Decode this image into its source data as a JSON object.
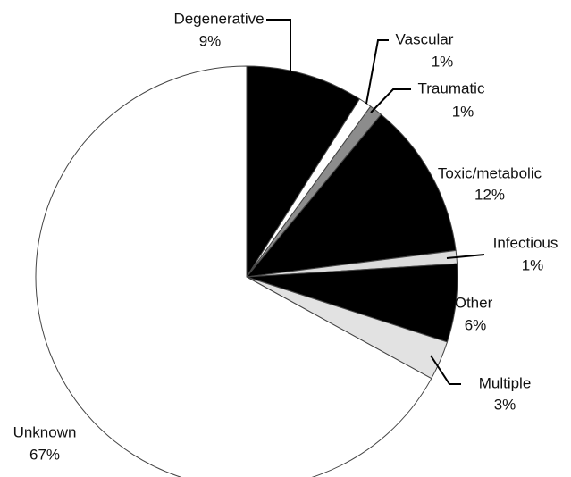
{
  "chart_data": {
    "type": "pie",
    "categories": [
      "Degenerative",
      "Vascular",
      "Traumatic",
      "Toxic/metabolic",
      "Infectious",
      "Other",
      "Multiple",
      "Unknown"
    ],
    "values": [
      9,
      1,
      1,
      12,
      1,
      6,
      3,
      67
    ],
    "value_labels": [
      "9%",
      "1%",
      "1%",
      "12%",
      "1%",
      "6%",
      "3%",
      "67%"
    ],
    "colors": [
      "#000000",
      "#ffffff",
      "#8c8c8c",
      "#000000",
      "#dcdcdc",
      "#000000",
      "#e2e2e2",
      "#ffffff"
    ]
  }
}
